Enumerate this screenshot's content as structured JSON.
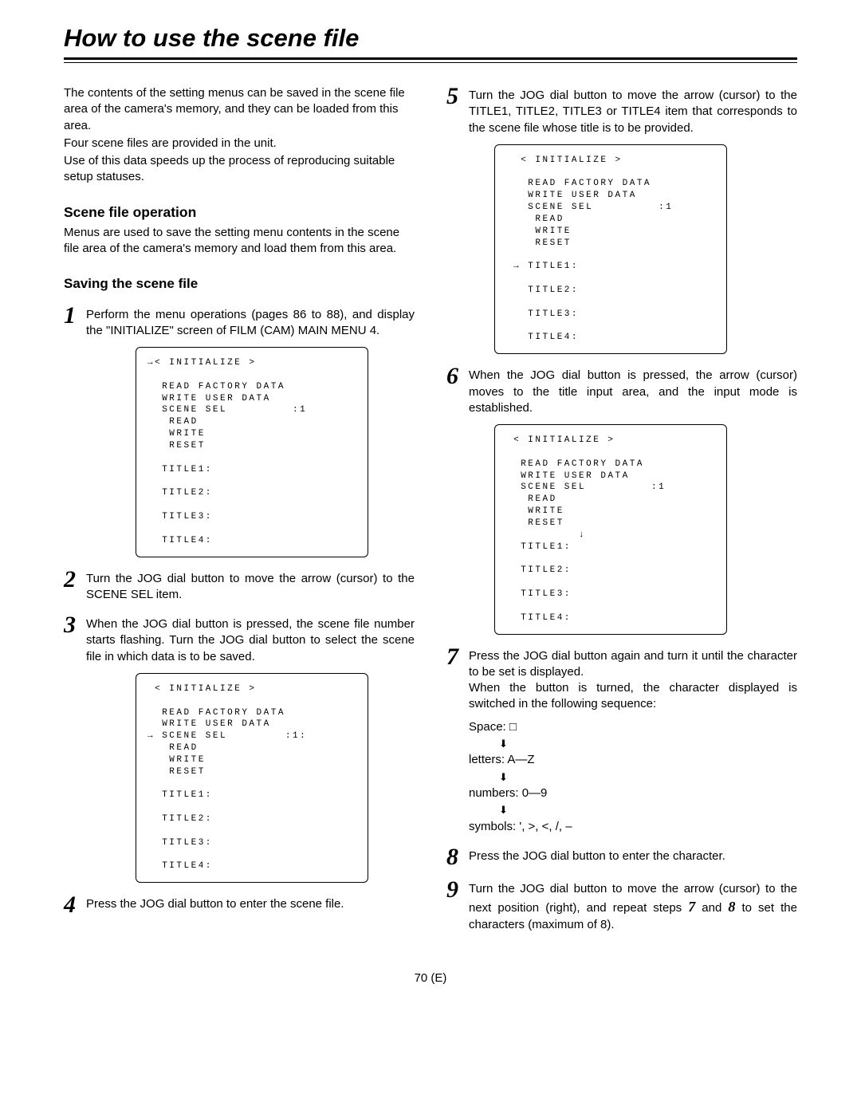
{
  "title": "How to use the scene file",
  "footer": "70 (E)",
  "left": {
    "intro": [
      "The contents of the setting menus can be saved in the scene file area of the camera's memory, and they can be loaded from this area.",
      "Four scene files are provided in the unit.",
      "Use of this data speeds up the process of reproducing suitable setup statuses."
    ],
    "section_head": "Scene file operation",
    "section_body": "Menus are used to save the setting menu contents in the scene file area of the camera's memory and load them from this area.",
    "subhead": "Saving the scene file",
    "step1": "Perform the menu operations (pages 86 to 88), and display the \"INITIALIZE\" screen of FILM (CAM) MAIN MENU 4.",
    "menu1": "→< INITIALIZE >\n\n  READ FACTORY DATA\n  WRITE USER DATA\n  SCENE SEL         :1\n   READ\n   WRITE\n   RESET\n\n  TITLE1:\n\n  TITLE2:\n\n  TITLE3:\n\n  TITLE4:",
    "step2": "Turn the JOG dial button to move the arrow (cursor) to the SCENE SEL item.",
    "step3": "When the JOG dial button is pressed, the scene file number starts flashing.  Turn the JOG dial button to select the scene file in which data is to be saved.",
    "menu3": " < INITIALIZE >\n\n  READ FACTORY DATA\n  WRITE USER DATA\n→ SCENE SEL        :1:\n   READ\n   WRITE\n   RESET\n\n  TITLE1:\n\n  TITLE2:\n\n  TITLE3:\n\n  TITLE4:",
    "step4": "Press the JOG dial button to enter the scene file."
  },
  "right": {
    "step5": "Turn the JOG dial button to move the arrow (cursor) to the TITLE1, TITLE2, TITLE3 or TITLE4 item that corresponds to the scene file whose title is to be provided.",
    "menu5": "  < INITIALIZE >\n\n   READ FACTORY DATA\n   WRITE USER DATA\n   SCENE SEL         :1\n    READ\n    WRITE\n    RESET\n\n → TITLE1:\n\n   TITLE2:\n\n   TITLE3:\n\n   TITLE4:",
    "step6": "When the JOG dial button is pressed, the arrow (cursor) moves to the title input area, and the input mode is established.",
    "menu6": " < INITIALIZE >\n\n  READ FACTORY DATA\n  WRITE USER DATA\n  SCENE SEL         :1\n   READ\n   WRITE\n   RESET\n          ↓\n  TITLE1:\n\n  TITLE2:\n\n  TITLE3:\n\n  TITLE4:",
    "step7_a": "Press the JOG dial button again and turn it until the character to be set is displayed.",
    "step7_b": "When the button is turned, the character displayed is switched in the following sequence:",
    "seq": {
      "space": "Space: □",
      "letters": "letters: A—Z",
      "numbers": "numbers: 0—9",
      "symbols": "symbols: ', >, <, /, –"
    },
    "step8": "Press the JOG dial button to enter the character.",
    "step9_pre": "Turn the JOG dial button to move the arrow (cursor) to the next position (right), and repeat steps ",
    "step9_mid": " and ",
    "step9_post": " to set the characters (maximum of 8).",
    "ref7": "7",
    "ref8": "8"
  }
}
